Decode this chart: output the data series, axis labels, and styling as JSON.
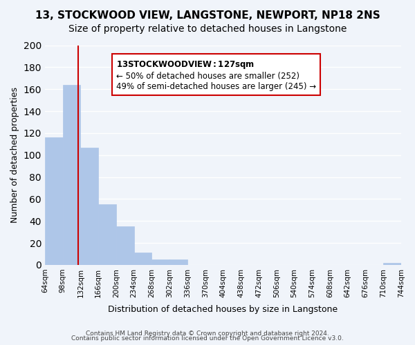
{
  "title": "13, STOCKWOOD VIEW, LANGSTONE, NEWPORT, NP18 2NS",
  "subtitle": "Size of property relative to detached houses in Langstone",
  "bar_values": [
    116,
    164,
    107,
    55,
    35,
    11,
    5,
    5,
    0,
    0,
    0,
    0,
    0,
    0,
    0,
    0,
    0,
    0,
    0,
    2
  ],
  "bin_edges": [
    64,
    98,
    132,
    166,
    200,
    234,
    268,
    302,
    336,
    370,
    404,
    438,
    472,
    506,
    540,
    574,
    608,
    642,
    676,
    710,
    744
  ],
  "x_labels": [
    "64sqm",
    "98sqm",
    "132sqm",
    "166sqm",
    "200sqm",
    "234sqm",
    "268sqm",
    "302sqm",
    "336sqm",
    "370sqm",
    "404sqm",
    "438sqm",
    "472sqm",
    "506sqm",
    "540sqm",
    "574sqm",
    "608sqm",
    "642sqm",
    "676sqm",
    "710sqm",
    "744sqm"
  ],
  "bar_color": "#aec6e8",
  "bar_edge_color": "#aec6e8",
  "vline_x": 127,
  "vline_color": "#cc0000",
  "ylabel": "Number of detached properties",
  "xlabel": "Distribution of detached houses by size in Langstone",
  "ylim": [
    0,
    200
  ],
  "yticks": [
    0,
    20,
    40,
    60,
    80,
    100,
    120,
    140,
    160,
    180,
    200
  ],
  "annotation_title": "13 STOCKWOOD VIEW: 127sqm",
  "annotation_line1": "← 50% of detached houses are smaller (252)",
  "annotation_line2": "49% of semi-detached houses are larger (245) →",
  "annotation_box_color": "#ffffff",
  "annotation_box_edge": "#cc0000",
  "footnote1": "Contains HM Land Registry data © Crown copyright and database right 2024.",
  "footnote2": "Contains public sector information licensed under the Open Government Licence v3.0.",
  "bg_color": "#f0f4fa",
  "grid_color": "#ffffff",
  "title_fontsize": 11,
  "subtitle_fontsize": 10
}
